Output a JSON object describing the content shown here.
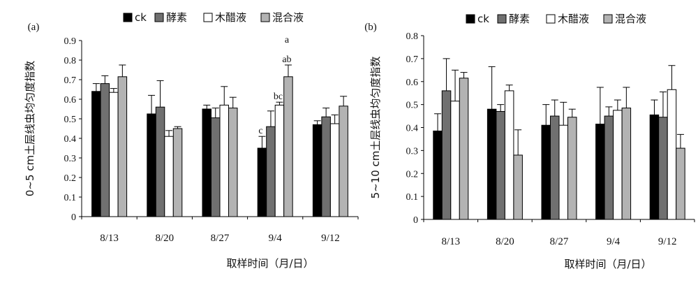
{
  "chart_data": [
    {
      "type": "bar",
      "panel_label": "(a)",
      "categories": [
        "8/13",
        "8/20",
        "8/27",
        "9/4",
        "9/12"
      ],
      "xlabel": "取样时间（月/日）",
      "ylabel": "0~5 cm土层线虫均匀度指数",
      "ylim": [
        0,
        0.9
      ],
      "yticks": [
        "0",
        "0.1",
        "0.2",
        "0.3",
        "0.4",
        "0.5",
        "0.6",
        "0.7",
        "0.8",
        "0.9"
      ],
      "legend_position": "top",
      "series": [
        {
          "name": "ck",
          "color": "#000000",
          "values": [
            0.64,
            0.525,
            0.55,
            0.35,
            0.47
          ],
          "errors": [
            0.04,
            0.095,
            0.02,
            0.06,
            0.02
          ]
        },
        {
          "name": "酵素",
          "color": "#707070",
          "values": [
            0.68,
            0.56,
            0.505,
            0.46,
            0.51
          ],
          "errors": [
            0.04,
            0.135,
            0.05,
            0.08,
            0.045
          ]
        },
        {
          "name": "木醋液",
          "color": "#ffffff",
          "values": [
            0.635,
            0.41,
            0.57,
            0.57,
            0.475
          ],
          "errors": [
            0.02,
            0.03,
            0.095,
            0.015,
            0.045
          ]
        },
        {
          "name": "混合液",
          "color": "#b3b3b3",
          "values": [
            0.715,
            0.45,
            0.555,
            0.715,
            0.565
          ],
          "errors": [
            0.06,
            0.01,
            0.055,
            0.06,
            0.05
          ]
        }
      ],
      "annotations": [
        {
          "category": "9/4",
          "series": "ck",
          "text": "c"
        },
        {
          "category": "9/4",
          "series": "木醋液",
          "text": "bc"
        },
        {
          "category": "9/4",
          "series": "混合液",
          "text": "ab"
        },
        {
          "category": "9/4",
          "series": "混合液",
          "text": "a"
        }
      ]
    },
    {
      "type": "bar",
      "panel_label": "(b)",
      "categories": [
        "8/13",
        "8/20",
        "8/27",
        "9/4",
        "9/12"
      ],
      "xlabel": "取样时间（月/日）",
      "ylabel": "5~10 cm土层线虫均匀度指数",
      "ylim": [
        0,
        0.8
      ],
      "yticks": [
        "0",
        "0.1",
        "0.2",
        "0.3",
        "0.4",
        "0.5",
        "0.6",
        "0.7",
        "0.8"
      ],
      "legend_position": "top",
      "series": [
        {
          "name": "ck",
          "color": "#000000",
          "values": [
            0.385,
            0.48,
            0.41,
            0.415,
            0.455
          ],
          "errors": [
            0.075,
            0.185,
            0.09,
            0.16,
            0.065
          ]
        },
        {
          "name": "酵素",
          "color": "#707070",
          "values": [
            0.56,
            0.47,
            0.45,
            0.45,
            0.445
          ],
          "errors": [
            0.14,
            0.03,
            0.07,
            0.04,
            0.11
          ]
        },
        {
          "name": "木醋液",
          "color": "#ffffff",
          "values": [
            0.515,
            0.56,
            0.41,
            0.475,
            0.565
          ],
          "errors": [
            0.135,
            0.025,
            0.1,
            0.045,
            0.105
          ]
        },
        {
          "name": "混合液",
          "color": "#b3b3b3",
          "values": [
            0.615,
            0.28,
            0.445,
            0.485,
            0.31
          ],
          "errors": [
            0.025,
            0.11,
            0.035,
            0.09,
            0.06
          ]
        }
      ],
      "annotations": []
    }
  ]
}
